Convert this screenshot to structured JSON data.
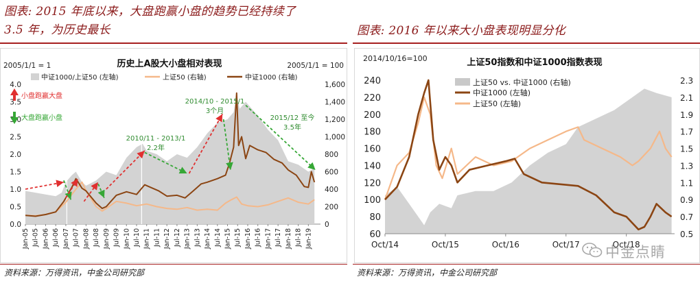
{
  "left": {
    "title_line1": "图表: 2015 年底以来，大盘跑赢小盘的趋势已经持续了",
    "title_line2": "3.5 年，为历史最长",
    "source": "资料来源：万得资讯，中金公司研究部",
    "chart_data": {
      "type": "area",
      "title": "历史上A股大小盘相对表现",
      "base_note_left": "2005/1/1 = 1",
      "base_note_right": "2005/1/1 = 100",
      "y_left_ticks": [
        "4.0",
        "3.5",
        "3.0",
        "2.5",
        "2.0",
        "1.5",
        "1.0",
        "0.5",
        "0.0"
      ],
      "y_left_range": [
        0,
        4
      ],
      "y_right_ticks": [
        "1,600",
        "1,400",
        "1,200",
        "1,000",
        "800",
        "600",
        "400",
        "200",
        "0"
      ],
      "y_right_range": [
        0,
        1600
      ],
      "x_ticks": [
        "Jan-05",
        "Jul-05",
        "Jan-06",
        "Jul-06",
        "Jan-07",
        "Jul-07",
        "Jan-08",
        "Jul-08",
        "Jan-09",
        "Jul-09",
        "Jan-10",
        "Jul-10",
        "Jan-11",
        "Jul-11",
        "Jan-12",
        "Jul-12",
        "Jan-13",
        "Jul-13",
        "Jan-14",
        "Jul-14",
        "Jan-15",
        "Jul-15",
        "Jan-16",
        "Jul-16",
        "Jan-17",
        "Jul-17",
        "Jan-18",
        "Jul-18",
        "Jan-19"
      ],
      "legend": [
        "中证1000/上证50 (左轴)",
        "上证50 (右轴)",
        "中证1000 (右轴)"
      ],
      "colors": {
        "ratio": "#d3d3d3",
        "sz50": "#f5b889",
        "csi1000": "#8b4513",
        "up": "#e03030",
        "down": "#36a736"
      },
      "series": [
        {
          "name": "中证1000/上证50 (左轴)",
          "axis": "left",
          "x": [
            2005.0,
            2005.5,
            2006.0,
            2006.5,
            2006.8,
            2007.0,
            2007.3,
            2007.5,
            2007.8,
            2008.0,
            2008.5,
            2008.8,
            2009.0,
            2009.5,
            2010.0,
            2010.5,
            2010.8,
            2011.0,
            2011.5,
            2012.0,
            2012.5,
            2013.0,
            2013.5,
            2014.0,
            2014.5,
            2015.0,
            2015.3,
            2015.45,
            2015.6,
            2015.9,
            2016.2,
            2016.5,
            2017.0,
            2017.5,
            2018.0,
            2018.5,
            2019.0,
            2019.3
          ],
          "values": [
            0.95,
            0.9,
            0.85,
            0.8,
            0.9,
            1.2,
            1.4,
            1.5,
            1.2,
            1.1,
            1.25,
            1.4,
            1.5,
            1.4,
            1.9,
            2.2,
            2.3,
            2.1,
            2.0,
            1.8,
            2.0,
            1.9,
            2.2,
            2.6,
            2.9,
            3.0,
            3.2,
            3.7,
            3.3,
            3.5,
            3.3,
            3.1,
            2.7,
            2.4,
            1.8,
            1.7,
            1.5,
            1.6
          ]
        },
        {
          "name": "上证50 (右轴)",
          "axis": "right",
          "x": [
            2005.0,
            2005.5,
            2006.0,
            2006.5,
            2007.0,
            2007.5,
            2007.8,
            2008.0,
            2008.5,
            2008.8,
            2009.0,
            2009.5,
            2010.0,
            2010.5,
            2011.0,
            2011.5,
            2012.0,
            2012.5,
            2013.0,
            2013.5,
            2014.0,
            2014.5,
            2014.9,
            2015.2,
            2015.45,
            2015.7,
            2016.0,
            2016.5,
            2017.0,
            2017.5,
            2018.0,
            2018.5,
            2019.0,
            2019.3
          ],
          "values": [
            100,
            95,
            110,
            140,
            250,
            400,
            480,
            380,
            200,
            150,
            180,
            260,
            240,
            210,
            230,
            200,
            180,
            170,
            190,
            160,
            170,
            160,
            240,
            280,
            310,
            230,
            210,
            200,
            220,
            260,
            300,
            250,
            230,
            280
          ]
        },
        {
          "name": "中证1000 (右轴)",
          "axis": "right",
          "x": [
            2005.0,
            2005.5,
            2006.0,
            2006.5,
            2006.9,
            2007.0,
            2007.3,
            2007.5,
            2007.8,
            2008.0,
            2008.5,
            2008.8,
            2009.0,
            2009.5,
            2010.0,
            2010.5,
            2010.9,
            2011.2,
            2011.6,
            2012.0,
            2012.5,
            2012.9,
            2013.3,
            2013.7,
            2014.0,
            2014.5,
            2014.9,
            2015.1,
            2015.3,
            2015.45,
            2015.55,
            2015.7,
            2015.9,
            2016.1,
            2016.5,
            2016.9,
            2017.3,
            2017.7,
            2018.0,
            2018.4,
            2018.8,
            2019.0,
            2019.15,
            2019.3
          ],
          "values": [
            100,
            90,
            110,
            140,
            260,
            300,
            420,
            520,
            410,
            380,
            240,
            180,
            200,
            330,
            370,
            340,
            450,
            420,
            380,
            320,
            330,
            300,
            380,
            460,
            480,
            520,
            560,
            700,
            880,
            1500,
            900,
            1000,
            750,
            900,
            850,
            820,
            740,
            700,
            620,
            560,
            430,
            420,
            600,
            480
          ]
        }
      ],
      "annotations": [
        {
          "kind": "legend-up",
          "text": "小盘跑赢大盘"
        },
        {
          "kind": "legend-down",
          "text": "大盘跑赢小盘"
        },
        {
          "kind": "period",
          "text": "2010/11 - 2013/1"
        },
        {
          "kind": "duration",
          "text": "2.2年"
        },
        {
          "kind": "period",
          "text": "2014/10 - 2015/1"
        },
        {
          "kind": "duration",
          "text": "3个月"
        },
        {
          "kind": "period",
          "text": "2015/12 至今"
        },
        {
          "kind": "duration",
          "text": "3.5年"
        }
      ]
    }
  },
  "right": {
    "title": "图表: 2016 年以来大小盘表现明显分化",
    "source": "资料来源：万得资讯，中金公司研究部",
    "chart_data": {
      "type": "area",
      "title": "上证50指数和中证1000指数表现",
      "base_note": "2014/10/16=100",
      "y_left_ticks": [
        "240",
        "220",
        "200",
        "180",
        "160",
        "140",
        "120",
        "100",
        "80",
        "60"
      ],
      "y_left_range": [
        60,
        240
      ],
      "y_right_ticks": [
        "2.3",
        "2.1",
        "1.9",
        "1.7",
        "1.5",
        "1.3",
        "1.1",
        "0.9",
        "0.7",
        "0.5"
      ],
      "y_right_range": [
        0.5,
        2.3
      ],
      "x_ticks": [
        "Oct/14",
        "Oct/15",
        "Oct/16",
        "Oct/17",
        "Oct/18"
      ],
      "legend": [
        "上证50 vs. 中证1000 (右轴)",
        "中证1000 (左轴)",
        "上证50 (左轴)"
      ],
      "colors": {
        "ratio": "#d3d3d3",
        "sz50": "#f5b889",
        "csi1000": "#8b4513"
      },
      "series": [
        {
          "name": "上证50 vs. 中证1000 (右轴)",
          "axis": "right",
          "x": [
            2014.8,
            2015.0,
            2015.2,
            2015.35,
            2015.45,
            2015.55,
            2015.7,
            2015.9,
            2016.0,
            2016.3,
            2016.6,
            2016.9,
            2017.2,
            2017.5,
            2017.8,
            2018.0,
            2018.3,
            2018.6,
            2018.9,
            2019.1,
            2019.3,
            2019.55
          ],
          "values": [
            0.95,
            1.05,
            0.85,
            0.7,
            0.6,
            0.75,
            0.85,
            0.8,
            0.95,
            1.0,
            1.0,
            1.1,
            1.3,
            1.45,
            1.55,
            1.75,
            1.85,
            1.95,
            2.1,
            2.2,
            2.15,
            2.1
          ]
        },
        {
          "name": "中证1000 (左轴)",
          "axis": "left",
          "x": [
            2014.8,
            2015.0,
            2015.2,
            2015.35,
            2015.45,
            2015.52,
            2015.6,
            2015.7,
            2015.8,
            2015.9,
            2016.0,
            2016.2,
            2016.5,
            2016.8,
            2016.95,
            2017.1,
            2017.4,
            2017.7,
            2018.0,
            2018.3,
            2018.6,
            2018.8,
            2019.0,
            2019.1,
            2019.2,
            2019.3,
            2019.45,
            2019.55
          ],
          "values": [
            100,
            115,
            150,
            200,
            225,
            240,
            170,
            135,
            150,
            140,
            120,
            135,
            140,
            145,
            148,
            130,
            120,
            118,
            116,
            105,
            85,
            80,
            65,
            68,
            80,
            95,
            85,
            80
          ]
        },
        {
          "name": "上证50 (左轴)",
          "axis": "left",
          "x": [
            2014.8,
            2015.0,
            2015.2,
            2015.35,
            2015.45,
            2015.55,
            2015.65,
            2015.75,
            2015.9,
            2016.0,
            2016.3,
            2016.6,
            2016.9,
            2017.2,
            2017.5,
            2017.8,
            2018.0,
            2018.1,
            2018.4,
            2018.7,
            2018.9,
            2019.0,
            2019.2,
            2019.35,
            2019.45,
            2019.55
          ],
          "values": [
            100,
            140,
            155,
            190,
            220,
            200,
            140,
            125,
            160,
            130,
            150,
            140,
            145,
            160,
            170,
            180,
            185,
            170,
            160,
            150,
            140,
            145,
            160,
            180,
            160,
            150
          ]
        }
      ]
    }
  },
  "watermark": {
    "text": "中金点睛",
    "icon": "wechat-icon"
  }
}
